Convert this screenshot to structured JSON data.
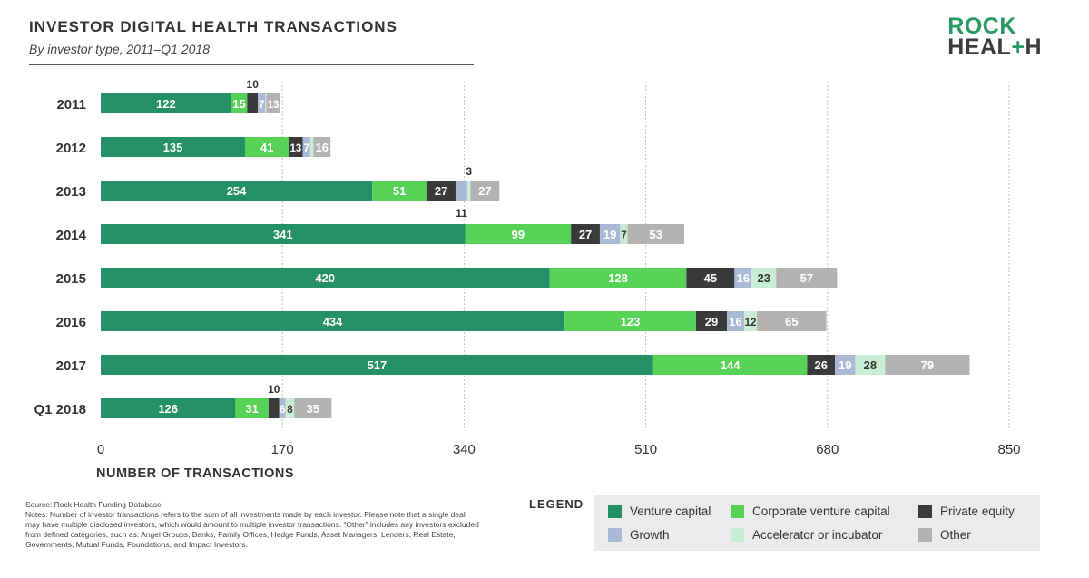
{
  "header": {
    "title": "INVESTOR DIGITAL HEALTH TRANSACTIONS",
    "subtitle": "By investor type, 2011–Q1 2018"
  },
  "logo": {
    "line1": "ROCK",
    "line2a": "HEAL",
    "line2plus": "+",
    "line2b": "H"
  },
  "chart_data": {
    "type": "bar",
    "orientation": "horizontal",
    "stacked": true,
    "title": "INVESTOR DIGITAL HEALTH TRANSACTIONS",
    "subtitle": "By investor type, 2011–Q1 2018",
    "xlabel": "NUMBER OF TRANSACTIONS",
    "ylabel": "",
    "xlim": [
      0,
      850
    ],
    "xticks": [
      0,
      170,
      340,
      510,
      680,
      850
    ],
    "grid": "vertical dashed",
    "categories": [
      "2011",
      "2012",
      "2013",
      "2014",
      "2015",
      "2016",
      "2017",
      "Q1 2018"
    ],
    "series": [
      {
        "name": "Venture capital",
        "color": "#239066",
        "label_color": "#ffffff",
        "values": [
          122,
          135,
          254,
          341,
          420,
          434,
          517,
          126
        ]
      },
      {
        "name": "Corporate venture capital",
        "color": "#56d356",
        "label_color": "#ffffff",
        "values": [
          15,
          41,
          51,
          99,
          128,
          123,
          144,
          31
        ]
      },
      {
        "name": "Private equity",
        "color": "#3a3a3a",
        "label_color": "#ffffff",
        "values": [
          10,
          13,
          27,
          27,
          45,
          29,
          26,
          10
        ]
      },
      {
        "name": "Growth",
        "color": "#a9b9d6",
        "label_color": "#ffffff",
        "values": [
          7,
          7,
          11,
          19,
          16,
          16,
          19,
          6
        ]
      },
      {
        "name": "Accelerator or incubator",
        "color": "#c8ecd4",
        "label_color": "#333333",
        "values": [
          1,
          3,
          3,
          7,
          23,
          12,
          28,
          8
        ]
      },
      {
        "name": "Other",
        "color": "#b3b3b3",
        "label_color": "#ffffff",
        "values": [
          13,
          16,
          27,
          53,
          57,
          65,
          79,
          35
        ]
      }
    ],
    "data_labels": [
      [
        "122",
        "15",
        "10",
        "7",
        "",
        "13"
      ],
      [
        "135",
        "41",
        "13",
        "7",
        "",
        "16"
      ],
      [
        "254",
        "51",
        "27",
        "11",
        "3",
        "27"
      ],
      [
        "341",
        "99",
        "27",
        "19",
        "7",
        "53"
      ],
      [
        "420",
        "128",
        "45",
        "16",
        "23",
        "57"
      ],
      [
        "434",
        "123",
        "29",
        "16",
        "12",
        "65"
      ],
      [
        "517",
        "144",
        "26",
        "19",
        "28",
        "79"
      ],
      [
        "126",
        "31",
        "10",
        "6",
        "8",
        "35"
      ]
    ],
    "legend": {
      "title": "LEGEND",
      "position": "bottom-right"
    }
  },
  "footer": {
    "source": "Source: Rock Health Funding Database",
    "notes": "Notes: Number of investor transactions refers to the sum of all investments made by each investor. Please note that a single deal may have multiple disclosed investors, which would amount to multiple investor transactions. “Other” includes any investors excluded from defined categories, such as: Angel Groups, Banks, Family Offices, Hedge Funds, Asset Managers, Lenders, Real Estate, Governments, Mutual Funds, Foundations, and Impact Investors."
  }
}
